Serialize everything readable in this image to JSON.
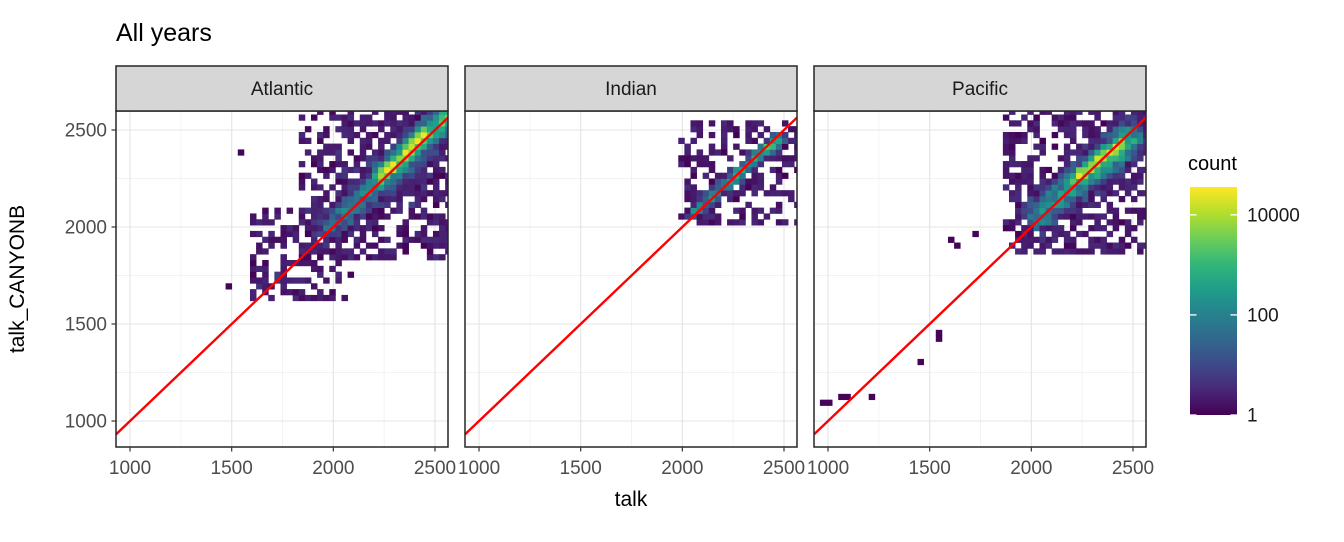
{
  "title": "All years",
  "axes": {
    "x_title": "talk",
    "y_title": "talk_CANYONB",
    "x_ticks": [
      1000,
      1500,
      2000,
      2500
    ],
    "y_ticks": [
      2500,
      2000,
      1500,
      1000
    ],
    "x_minor": [
      1250,
      1750,
      2250
    ],
    "y_minor": [
      1250,
      1750,
      2250
    ]
  },
  "legend": {
    "title": "count",
    "tick_labels": [
      "10000",
      "100",
      "1"
    ],
    "tick_values": [
      10000,
      100,
      1
    ],
    "max_count": 36000
  },
  "colors": {
    "identity_line": "#ff0000",
    "strip_fill": "#d6d6d6",
    "panel_border": "#262626",
    "panel_bg": "#ffffff",
    "grid_major": "#e4e4e4",
    "grid_minor": "#f2f2f2",
    "tick_mark": "#333333",
    "tick_label": "#4d4d4d",
    "text": "#000000",
    "legend_label": "#1a1a1a",
    "viridis": [
      "#440154",
      "#482878",
      "#3e4a89",
      "#31688e",
      "#26828e",
      "#1f9e89",
      "#35b779",
      "#6ece58",
      "#b5de2b",
      "#fde725"
    ]
  },
  "chart_data": {
    "type": "bin2d_faceted_scatter",
    "x_domain": [
      931,
      2564
    ],
    "y_domain": [
      866,
      2598
    ],
    "bin_width": 30,
    "log_color_max": 4.556,
    "seed": 11,
    "identity_line": {
      "x0": 931,
      "y0": 931,
      "x1": 2564,
      "y1": 2564
    },
    "facets": [
      {
        "name": "Atlantic",
        "clusters": [
          {
            "x0": 1995,
            "y0": 2010,
            "x1": 2550,
            "y1": 2565,
            "sigma": 55,
            "peak0": 1.7,
            "peak1": 3.3
          },
          {
            "x0": 2235,
            "y0": 2260,
            "x1": 2455,
            "y1": 2480,
            "sigma": 33,
            "peak0": 4.2,
            "peak1": 4.5
          },
          {
            "x0": 1640,
            "y0": 1668,
            "x1": 1995,
            "y1": 2025,
            "sigma": 15,
            "peak0": 0.5,
            "peak1": 1.0
          }
        ],
        "scatter": [
          {
            "x0": 2000,
            "x1": 2230,
            "y0": 2140,
            "y1": 2400,
            "n": 26,
            "max_log": 0.9
          },
          {
            "x0": 2230,
            "x1": 2520,
            "y0": 2085,
            "y1": 2310,
            "n": 18,
            "max_log": 0.9
          },
          {
            "x0": 1860,
            "x1": 2000,
            "y0": 1900,
            "y1": 2080,
            "n": 6,
            "max_log": 0.7
          }
        ],
        "outliers": [
          [
            1550,
            2375
          ],
          [
            1495,
            1700
          ],
          [
            2090,
            1760
          ],
          [
            2120,
            1905
          ],
          [
            2340,
            1960
          ],
          [
            2170,
            2040
          ]
        ]
      },
      {
        "name": "Indian",
        "clusters": [
          {
            "x0": 2060,
            "y0": 2085,
            "x1": 2480,
            "y1": 2458,
            "sigma": 24,
            "peak0": 2.1,
            "peak1": 3.4
          }
        ],
        "scatter": [
          {
            "x0": 2060,
            "x1": 2130,
            "y0": 2080,
            "y1": 2160,
            "n": 3,
            "max_log": 0.5
          }
        ],
        "outliers": [
          [
            2135,
            2310
          ],
          [
            2210,
            2390
          ]
        ]
      },
      {
        "name": "Pacific",
        "clusters": [
          {
            "x0": 2040,
            "y0": 2062,
            "x1": 2470,
            "y1": 2448,
            "sigma": 58,
            "peak0": 2.3,
            "peak1": 3.3
          },
          {
            "x0": 2220,
            "y0": 2255,
            "x1": 2440,
            "y1": 2435,
            "sigma": 30,
            "peak0": 4.1,
            "peak1": 4.5
          }
        ],
        "scatter": [
          {
            "x0": 1990,
            "x1": 2120,
            "y0": 1950,
            "y1": 2060,
            "n": 8,
            "max_log": 0.8
          }
        ],
        "outliers": [
          [
            980,
            1080
          ],
          [
            1010,
            1080
          ],
          [
            1065,
            1110
          ],
          [
            1090,
            1110
          ],
          [
            1205,
            1135
          ],
          [
            1455,
            1300
          ],
          [
            1535,
            1450
          ],
          [
            1535,
            1420
          ],
          [
            1590,
            1925
          ],
          [
            1620,
            1890
          ],
          [
            1735,
            1950
          ],
          [
            1885,
            1985
          ],
          [
            1945,
            1970
          ],
          [
            1895,
            2030
          ]
        ]
      }
    ]
  }
}
